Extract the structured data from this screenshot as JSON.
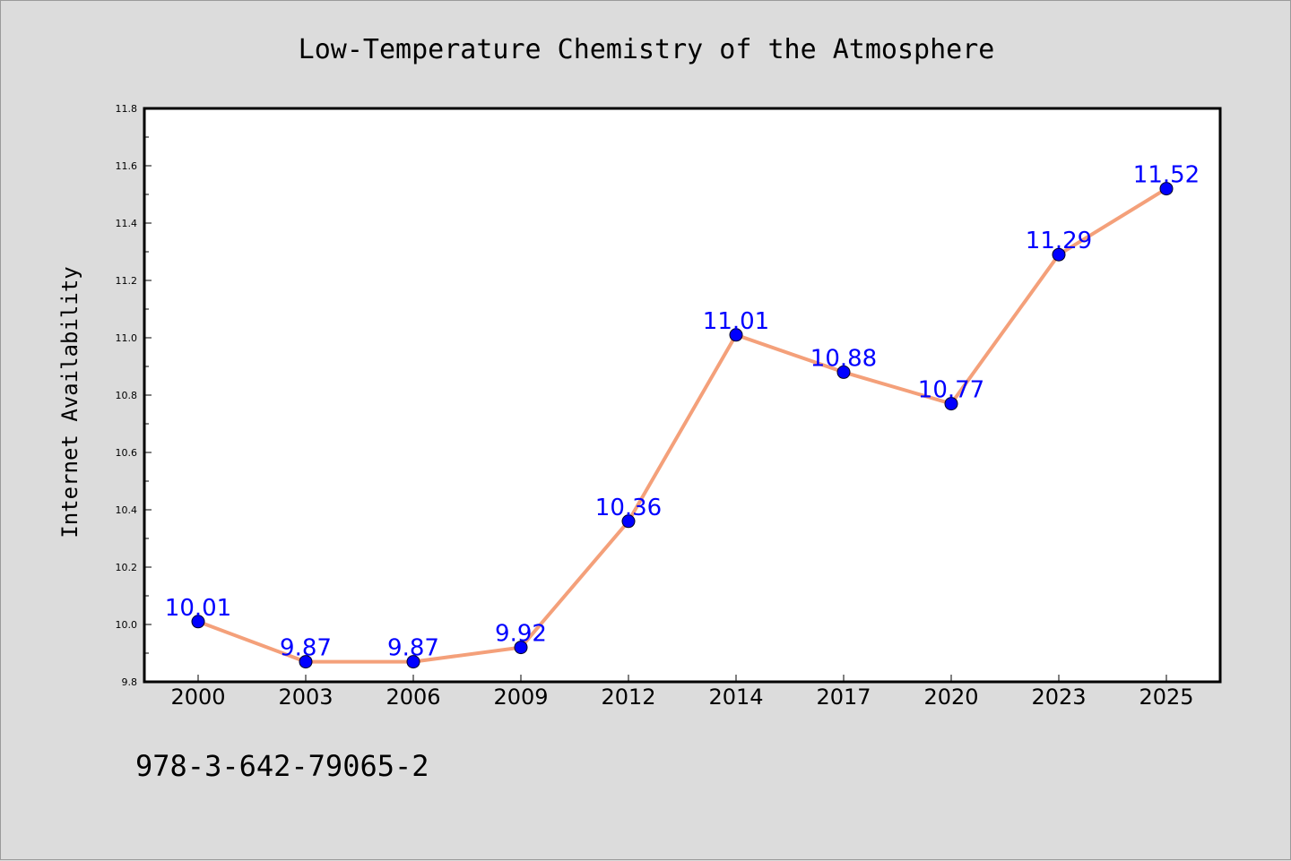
{
  "chart_data": {
    "type": "line",
    "title": "Low-Temperature Chemistry of the Atmosphere",
    "xlabel": "",
    "ylabel": "Internet Availability",
    "categories": [
      "2000",
      "2003",
      "2006",
      "2009",
      "2012",
      "2014",
      "2017",
      "2020",
      "2023",
      "2025"
    ],
    "series": [
      {
        "values": [
          10.01,
          9.87,
          9.87,
          9.92,
          10.36,
          11.01,
          10.88,
          10.77,
          11.29,
          11.52
        ],
        "line_color": "#f4a07a",
        "marker_color": "#0000ff"
      }
    ],
    "data_labels": [
      "10.01",
      "9.87",
      "9.87",
      "9.92",
      "10.36",
      "11.01",
      "10.88",
      "10.77",
      "11.29",
      "11.52"
    ],
    "ylim": [
      9.8,
      11.8
    ],
    "y_ticks": [
      "9.8",
      "10.0",
      "10.2",
      "10.4",
      "10.6",
      "10.8",
      "11.0",
      "11.2",
      "11.4",
      "11.6",
      "11.8"
    ],
    "grid": false,
    "legend": "none"
  },
  "footer_text": "978-3-642-79065-2",
  "colors": {
    "background": "#dcdcdc",
    "plot_background": "#ffffff",
    "line": "#f4a07a",
    "marker": "#0000ff",
    "data_label": "#0000ff"
  }
}
